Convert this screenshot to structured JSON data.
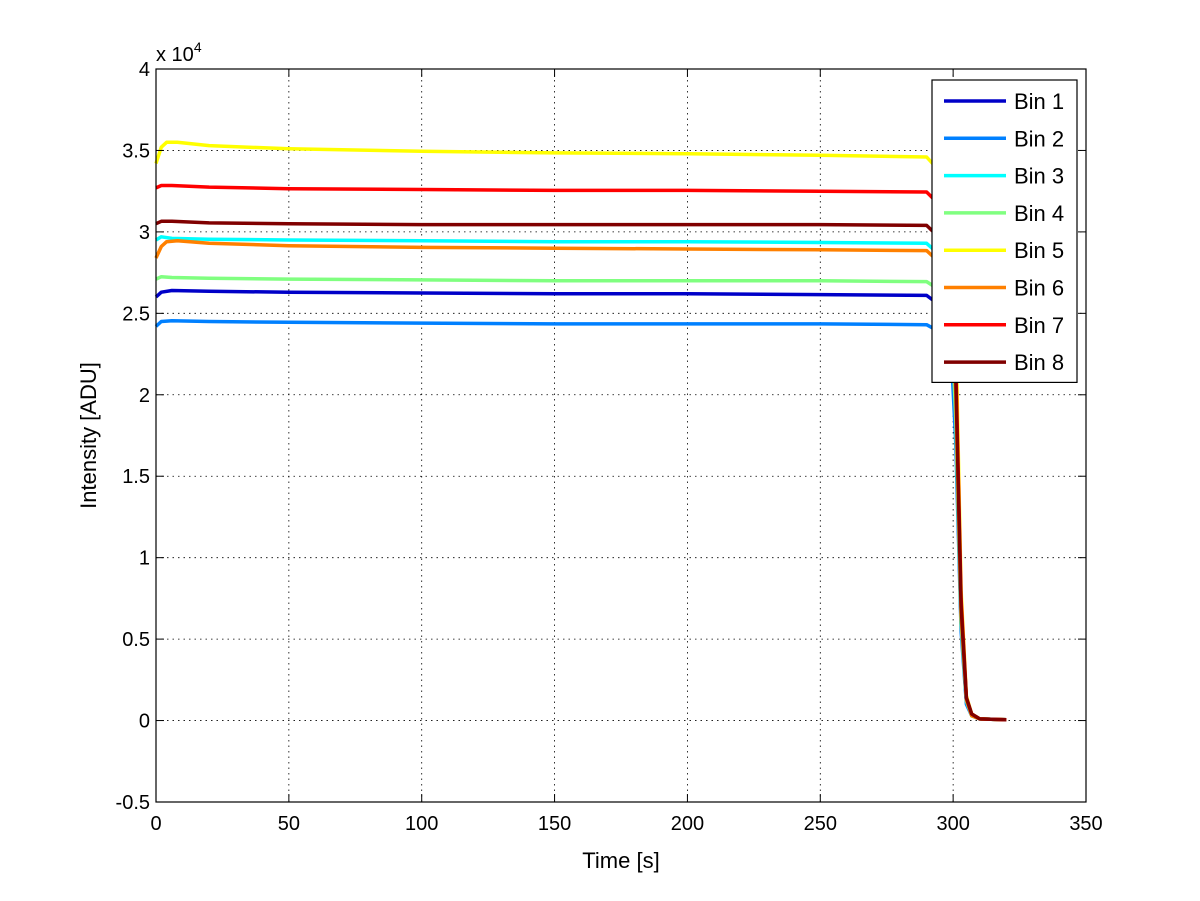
{
  "chart_data": {
    "type": "line",
    "xlabel": "Time [s]",
    "ylabel": "Intensity [ADU]",
    "y_exponent_label": {
      "base": "x 10",
      "exp": "4"
    },
    "xlim": [
      0,
      350
    ],
    "ylim": [
      -0.5,
      4
    ],
    "xticks": [
      0,
      50,
      100,
      150,
      200,
      250,
      300,
      350
    ],
    "yticks": [
      -0.5,
      0,
      0.5,
      1,
      1.5,
      2,
      2.5,
      3,
      3.5,
      4
    ],
    "xtick_labels": [
      "0",
      "50",
      "100",
      "150",
      "200",
      "250",
      "300",
      "350"
    ],
    "ytick_labels": [
      "-0.5",
      "0",
      "0.5",
      "1",
      "1.5",
      "2",
      "2.5",
      "3",
      "3.5",
      "4"
    ],
    "grid": true,
    "legend_position": "top-right",
    "series": [
      {
        "name": "Bin 1",
        "color": "#0000c8",
        "x": [
          0,
          2,
          6,
          20,
          50,
          100,
          150,
          200,
          250,
          290,
          299,
          301,
          303,
          305,
          307,
          310,
          320
        ],
        "y": [
          2.6,
          2.63,
          2.64,
          2.635,
          2.63,
          2.625,
          2.62,
          2.62,
          2.615,
          2.61,
          2.5,
          1.8,
          0.6,
          0.12,
          0.03,
          0.01,
          0.005
        ]
      },
      {
        "name": "Bin 2",
        "color": "#0080ff",
        "x": [
          0,
          2,
          6,
          20,
          50,
          100,
          150,
          200,
          250,
          290,
          299,
          301,
          303,
          305,
          307,
          310,
          320
        ],
        "y": [
          2.42,
          2.45,
          2.455,
          2.45,
          2.445,
          2.44,
          2.435,
          2.435,
          2.435,
          2.43,
          2.35,
          1.7,
          0.55,
          0.1,
          0.03,
          0.01,
          0.005
        ]
      },
      {
        "name": "Bin 3",
        "color": "#00ffff",
        "x": [
          0,
          2,
          6,
          20,
          50,
          100,
          150,
          200,
          250,
          290,
          299,
          301,
          303,
          305,
          307,
          310,
          320
        ],
        "y": [
          2.95,
          2.97,
          2.96,
          2.955,
          2.95,
          2.945,
          2.94,
          2.94,
          2.935,
          2.93,
          2.8,
          2.0,
          0.65,
          0.13,
          0.03,
          0.01,
          0.005
        ]
      },
      {
        "name": "Bin 4",
        "color": "#80ff80",
        "x": [
          0,
          2,
          6,
          20,
          50,
          100,
          150,
          200,
          250,
          290,
          299,
          301,
          303,
          305,
          307,
          310,
          320
        ],
        "y": [
          2.71,
          2.725,
          2.72,
          2.715,
          2.71,
          2.705,
          2.7,
          2.7,
          2.7,
          2.695,
          2.6,
          1.85,
          0.6,
          0.12,
          0.03,
          0.01,
          0.005
        ]
      },
      {
        "name": "Bin 5",
        "color": "#ffff00",
        "x": [
          0,
          2,
          4,
          8,
          20,
          50,
          100,
          150,
          200,
          250,
          290,
          299,
          301,
          303,
          305,
          307,
          310,
          320
        ],
        "y": [
          3.42,
          3.52,
          3.55,
          3.55,
          3.53,
          3.51,
          3.495,
          3.485,
          3.48,
          3.47,
          3.46,
          3.3,
          2.4,
          0.8,
          0.15,
          0.04,
          0.01,
          0.005
        ]
      },
      {
        "name": "Bin 6",
        "color": "#ff8000",
        "x": [
          0,
          2,
          4,
          8,
          20,
          50,
          100,
          150,
          200,
          250,
          290,
          299,
          301,
          303,
          305,
          307,
          310,
          320
        ],
        "y": [
          2.84,
          2.91,
          2.94,
          2.945,
          2.93,
          2.915,
          2.905,
          2.9,
          2.895,
          2.89,
          2.885,
          2.75,
          2.0,
          0.65,
          0.13,
          0.03,
          0.01,
          0.005
        ]
      },
      {
        "name": "Bin 7",
        "color": "#ff0000",
        "x": [
          0,
          2,
          6,
          20,
          50,
          100,
          150,
          200,
          250,
          290,
          299,
          301,
          303,
          305,
          307,
          310,
          320
        ],
        "y": [
          3.27,
          3.285,
          3.285,
          3.275,
          3.265,
          3.26,
          3.255,
          3.255,
          3.25,
          3.245,
          3.1,
          2.2,
          0.75,
          0.14,
          0.04,
          0.01,
          0.005
        ]
      },
      {
        "name": "Bin 8",
        "color": "#800000",
        "x": [
          0,
          2,
          6,
          20,
          50,
          100,
          150,
          200,
          250,
          290,
          299,
          301,
          303,
          305,
          307,
          310,
          320
        ],
        "y": [
          3.05,
          3.065,
          3.065,
          3.055,
          3.05,
          3.045,
          3.045,
          3.045,
          3.045,
          3.04,
          2.9,
          2.1,
          0.7,
          0.14,
          0.04,
          0.01,
          0.005
        ]
      }
    ]
  }
}
